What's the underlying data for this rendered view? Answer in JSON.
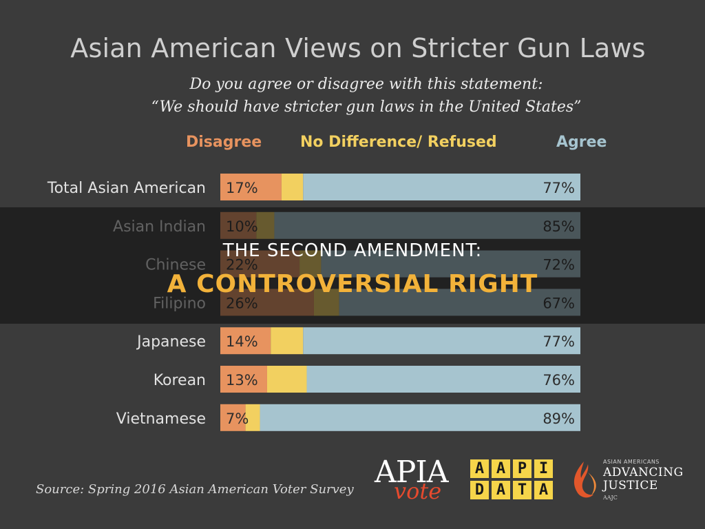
{
  "title": "Asian American Views on Stricter Gun Laws",
  "subtitle_line1": "Do you agree or disagree with this statement:",
  "subtitle_line2": "“We should have stricter gun laws in the United States”",
  "legend": {
    "disagree": "Disagree",
    "no_difference": "No Difference/ Refused",
    "agree": "Agree"
  },
  "colors": {
    "disagree": "#e7935f",
    "no_difference": "#f2d060",
    "agree": "#a6c4cf",
    "background": "#3b3b3b",
    "banner_accent": "#f2b23a"
  },
  "chart_data": {
    "type": "bar",
    "orientation": "horizontal",
    "stacked": true,
    "categories": [
      "Total Asian American",
      "Asian Indian",
      "Chinese",
      "Filipino",
      "Japanese",
      "Korean",
      "Vietnamese"
    ],
    "series": [
      {
        "name": "Disagree",
        "values": [
          17,
          10,
          22,
          26,
          14,
          13,
          7
        ]
      },
      {
        "name": "No Difference/ Refused",
        "values": [
          6,
          5,
          6,
          7,
          9,
          11,
          4
        ]
      },
      {
        "name": "Agree",
        "values": [
          77,
          85,
          72,
          67,
          77,
          76,
          89
        ]
      }
    ],
    "value_labels": {
      "disagree": [
        "17%",
        "10%",
        "22%",
        "26%",
        "14%",
        "13%",
        "7%"
      ],
      "agree": [
        "77%",
        "85%",
        "72%",
        "67%",
        "77%",
        "76%",
        "89%"
      ]
    },
    "xlim": [
      0,
      100
    ],
    "legend_position": "top"
  },
  "banner": {
    "line1": "THE SECOND AMENDMENT:",
    "line2": "A CONTROVERSIAL RIGHT"
  },
  "source": "Source: Spring 2016 Asian American Voter Survey",
  "logos": {
    "apia_text": "APIA",
    "vote_text": "vote",
    "aapi_data_letters": [
      "A",
      "A",
      "P",
      "I",
      "D",
      "A",
      "T",
      "A"
    ],
    "aajc_small": "ASIAN AMERICANS",
    "aajc_big1": "ADVANCING",
    "aajc_big2": "JUSTICE",
    "aajc_tiny": "AAJC"
  }
}
